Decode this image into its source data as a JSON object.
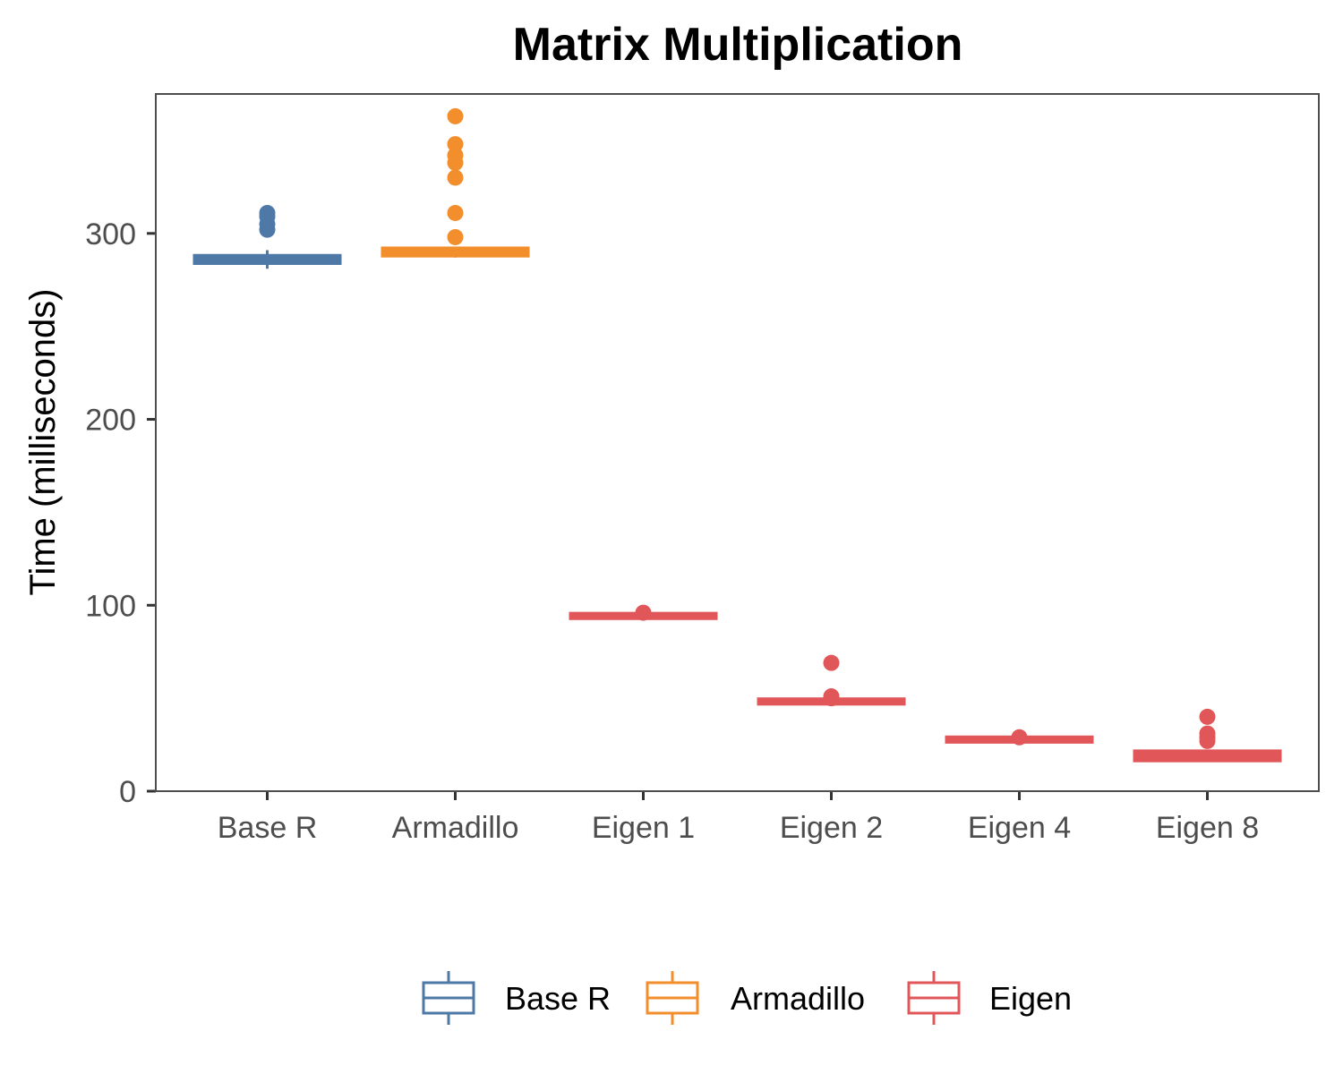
{
  "chart_data": {
    "type": "box",
    "title": "Matrix Multiplication",
    "xlabel": "",
    "ylabel": "Time (milliseconds)",
    "ylim": [
      0,
      375
    ],
    "yticks": [
      0,
      100,
      200,
      300
    ],
    "grid": false,
    "legend_position": "bottom",
    "categories": [
      "Base R",
      "Armadillo",
      "Eigen 1",
      "Eigen 2",
      "Eigen 4",
      "Eigen 8"
    ],
    "groups": [
      {
        "name": "Base R",
        "color": "#4e79a7"
      },
      {
        "name": "Armadillo",
        "color": "#f28e2b"
      },
      {
        "name": "Eigen",
        "color": "#e15759"
      }
    ],
    "boxes": [
      {
        "category": "Base R",
        "group": "Base R",
        "whisker_low": 281,
        "q1": 284.5,
        "median": 285.5,
        "q3": 287.5,
        "whisker_high": 291,
        "outliers": [
          302,
          305,
          309,
          311
        ]
      },
      {
        "category": "Armadillo",
        "group": "Armadillo",
        "whisker_low": 287,
        "q1": 288.5,
        "median": 289.5,
        "q3": 291.5,
        "whisker_high": 292,
        "outliers": [
          298,
          311,
          330,
          338,
          342,
          348,
          363
        ]
      },
      {
        "category": "Eigen 1",
        "group": "Eigen",
        "whisker_low": 93,
        "q1": 93.5,
        "median": 94,
        "q3": 95,
        "whisker_high": 95.5,
        "outliers": [
          96
        ]
      },
      {
        "category": "Eigen 2",
        "group": "Eigen",
        "whisker_low": 47,
        "q1": 47.5,
        "median": 48,
        "q3": 49,
        "whisker_high": 50,
        "outliers": [
          50,
          51,
          69
        ]
      },
      {
        "category": "Eigen 4",
        "group": "Eigen",
        "whisker_low": 26.5,
        "q1": 27,
        "median": 27.5,
        "q3": 28.5,
        "whisker_high": 29,
        "outliers": [
          29
        ]
      },
      {
        "category": "Eigen 8",
        "group": "Eigen",
        "whisker_low": 16.5,
        "q1": 17,
        "median": 18.5,
        "q3": 21,
        "whisker_high": 22,
        "outliers": [
          27,
          29,
          31,
          40
        ]
      }
    ]
  }
}
